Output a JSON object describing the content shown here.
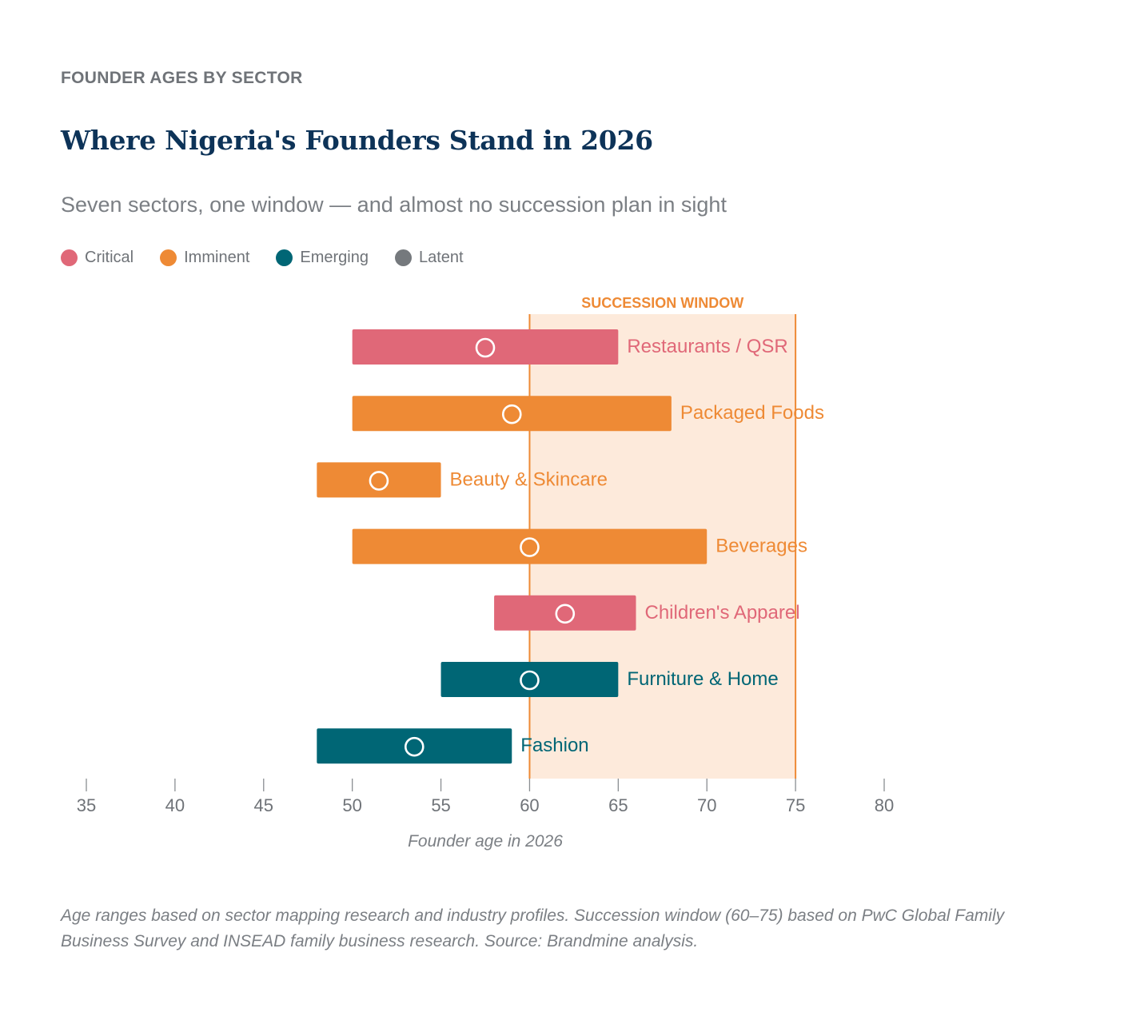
{
  "header": {
    "eyebrow": "FOUNDER AGES BY SECTOR",
    "title": "Where Nigeria's Founders Stand in 2026",
    "subtitle": "Seven sectors, one window — and almost no succession plan in sight"
  },
  "legend": [
    {
      "label": "Critical",
      "color": "#e06878"
    },
    {
      "label": "Imminent",
      "color": "#ee8a35"
    },
    {
      "label": "Emerging",
      "color": "#006675"
    },
    {
      "label": "Latent",
      "color": "#75797d"
    }
  ],
  "chart_data": {
    "type": "range-bar",
    "title": "Where Nigeria's Founders Stand in 2026",
    "xlabel": "Founder age in 2026",
    "xlim": [
      35,
      80
    ],
    "xticks": [
      35,
      40,
      45,
      50,
      55,
      60,
      65,
      70,
      75,
      80
    ],
    "band": {
      "label": "SUCCESSION WINDOW",
      "start": 60,
      "end": 75
    },
    "series": [
      {
        "sector": "Restaurants / QSR",
        "status": "Critical",
        "min": 50,
        "max": 65,
        "marker": 57.5
      },
      {
        "sector": "Packaged Foods",
        "status": "Imminent",
        "min": 50,
        "max": 68,
        "marker": 59
      },
      {
        "sector": "Beauty & Skincare",
        "status": "Imminent",
        "min": 48,
        "max": 55,
        "marker": 51.5
      },
      {
        "sector": "Beverages",
        "status": "Imminent",
        "min": 50,
        "max": 70,
        "marker": 60
      },
      {
        "sector": "Children's Apparel",
        "status": "Critical",
        "min": 58,
        "max": 66,
        "marker": 62
      },
      {
        "sector": "Furniture & Home",
        "status": "Emerging",
        "min": 55,
        "max": 65,
        "marker": 60
      },
      {
        "sector": "Fashion",
        "status": "Emerging",
        "min": 48,
        "max": 59,
        "marker": 53.5
      }
    ],
    "band_color": "#fdeadb",
    "band_line_color": "#ee8a35",
    "grid": false,
    "legend_position": "top-left"
  },
  "footnote": "Age ranges based on sector mapping research and industry profiles. Succession window (60–75) based on PwC Global Family Business Survey and INSEAD family business research. Source: Brandmine analysis."
}
